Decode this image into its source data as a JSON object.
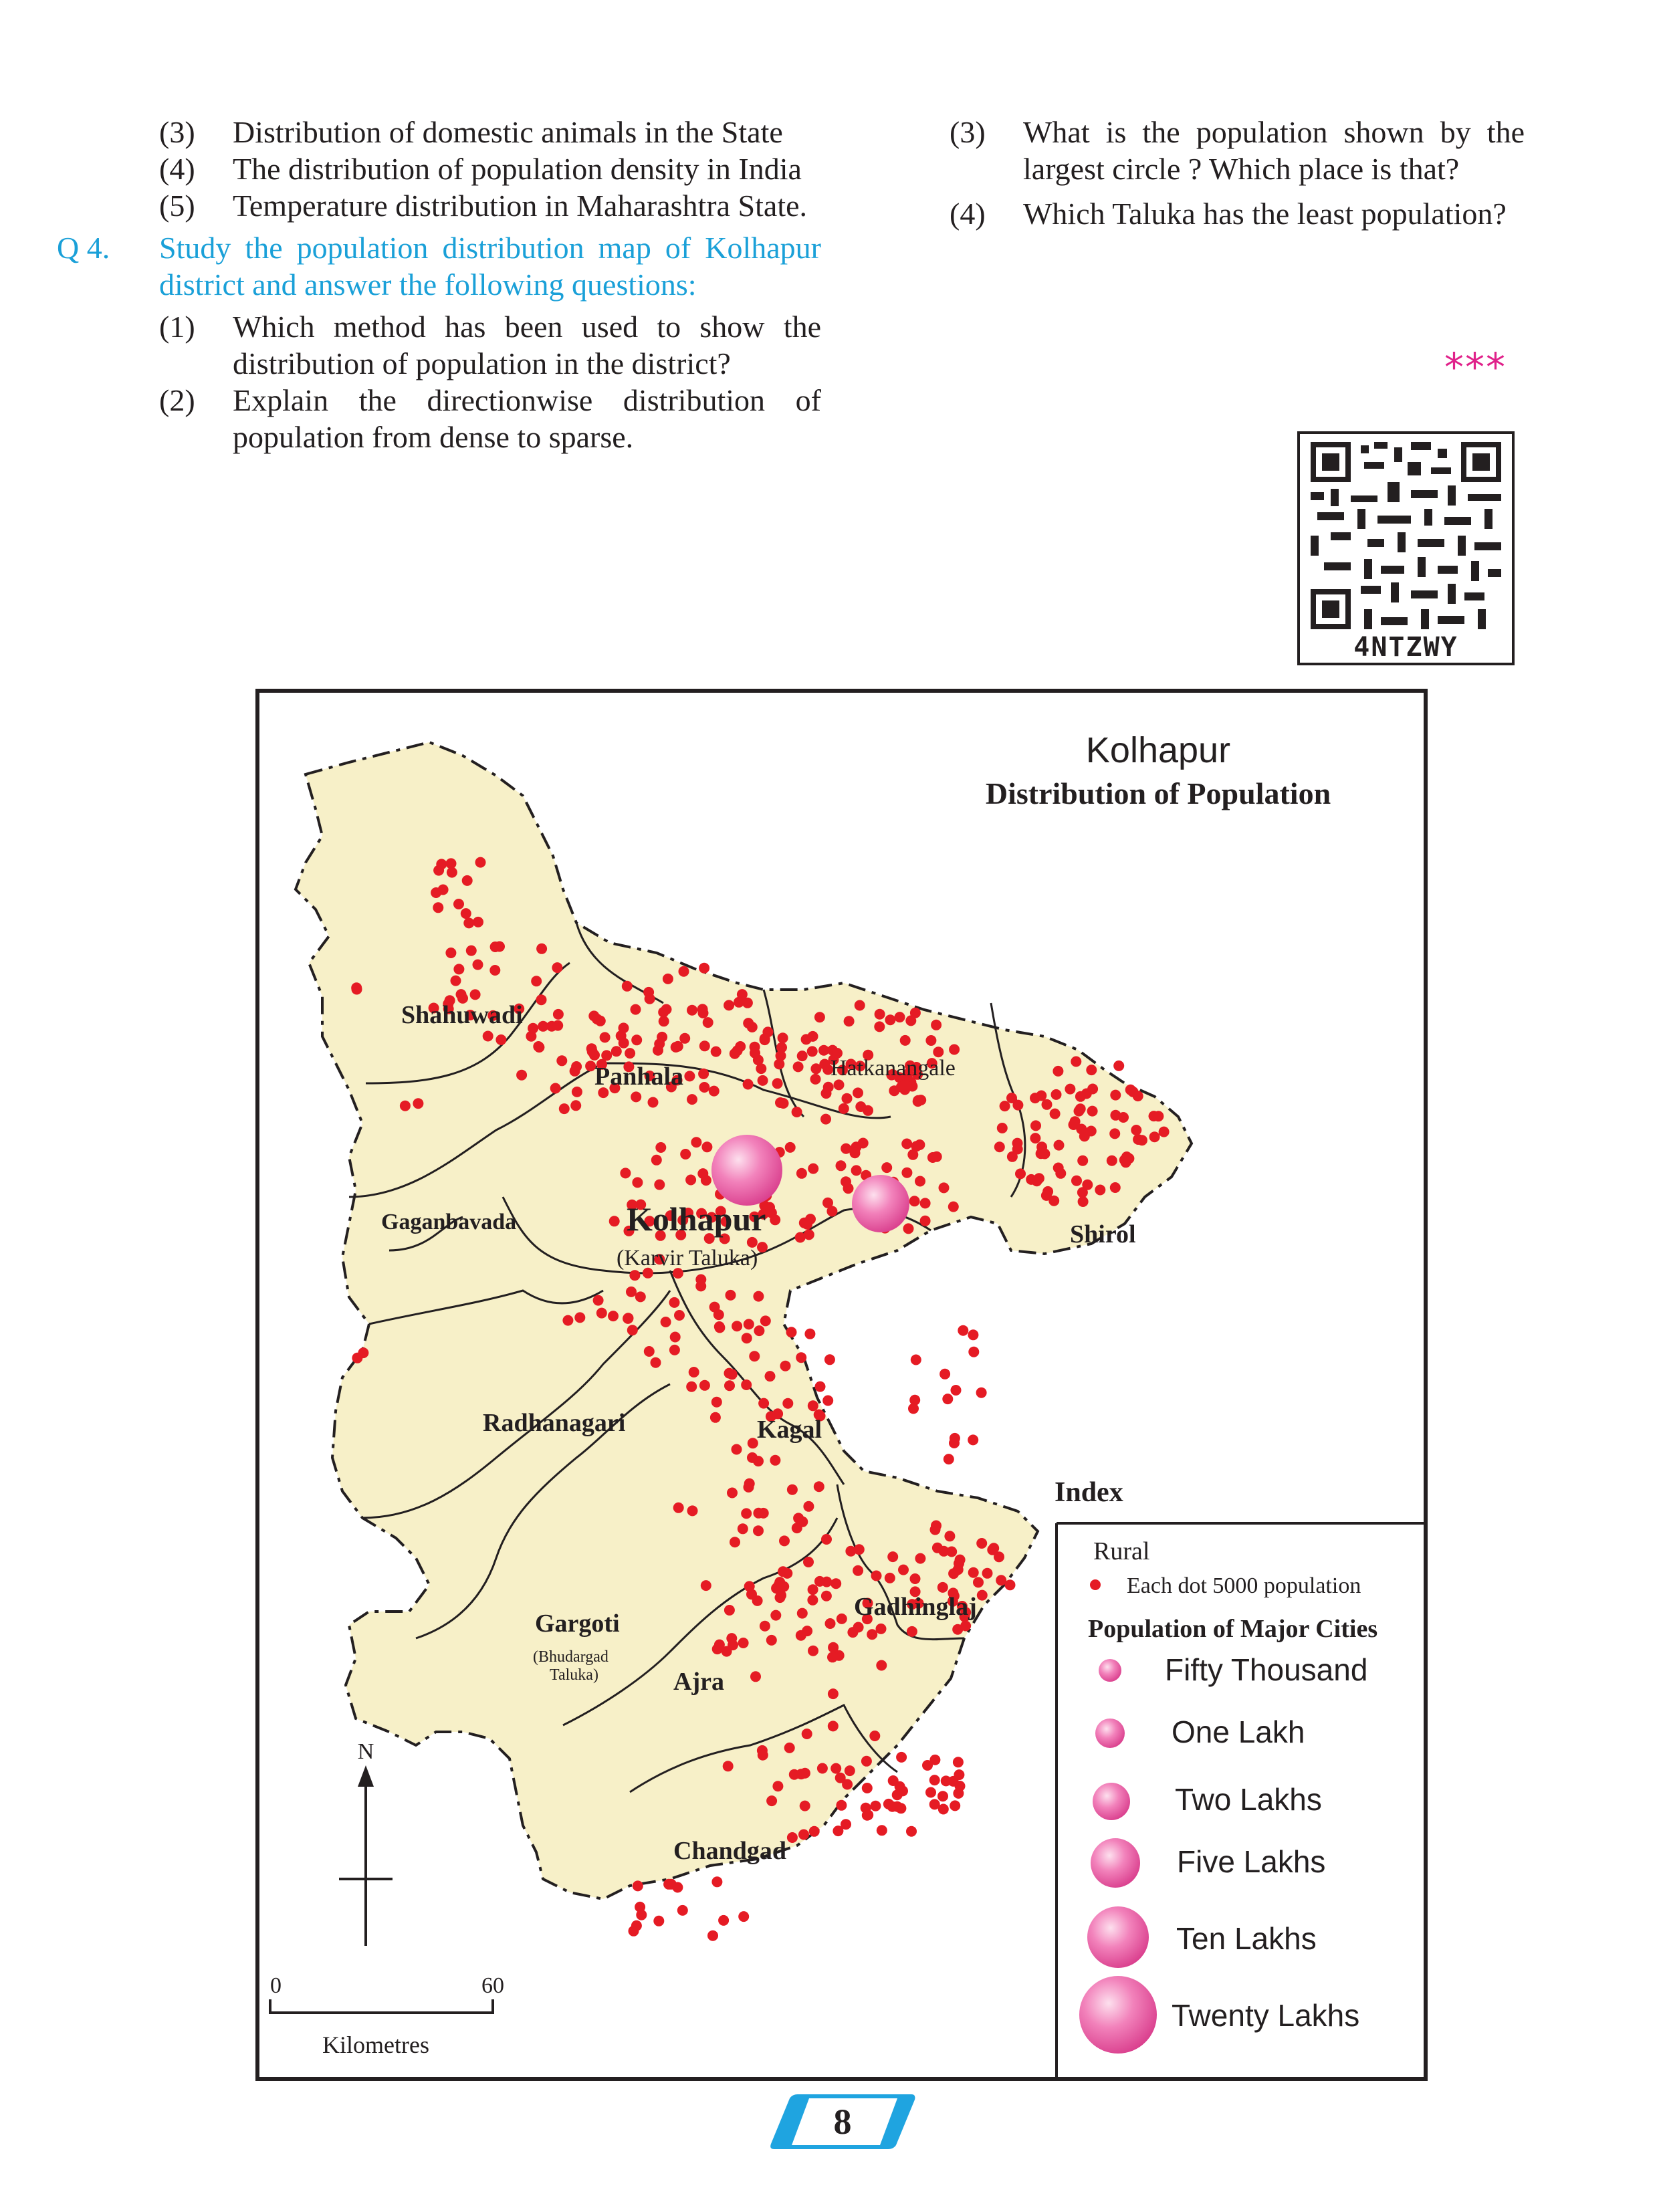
{
  "left_column": {
    "items_top": [
      {
        "num": "(3)",
        "text": "Distribution of domestic animals in the State"
      },
      {
        "num": "(4)",
        "text": "The distribution of population density in India"
      },
      {
        "num": "(5)",
        "text": "Temperature distribution in Maharashtra State."
      }
    ],
    "question": {
      "num": "Q 4.",
      "text": "Study the population distribution map of Kolhapur district and answer the following questions:"
    },
    "sub_items": [
      {
        "num": "(1)",
        "text": "Which method has been used to show the distribution of population in the district?"
      },
      {
        "num": "(2)",
        "text": "Explain the directionwise distribution of population from dense to sparse."
      }
    ]
  },
  "right_column": {
    "items": [
      {
        "num": "(3)",
        "text": "What is the population shown by the largest circle ? Which place is that?"
      },
      {
        "num": "(4)",
        "text": "Which Taluka has the least population?"
      }
    ],
    "stars": "***"
  },
  "qr": {
    "label": "4NTZWY"
  },
  "map": {
    "title": "Kolhapur",
    "subtitle": "Distribution of Population",
    "talukas": [
      {
        "name": "Shahuwadi"
      },
      {
        "name": "Panhala"
      },
      {
        "name": "Hatkanangale"
      },
      {
        "name": "Gaganbavada"
      },
      {
        "name": "Kolhapur"
      },
      {
        "name": "Shirol"
      },
      {
        "name": "Radhanagari"
      },
      {
        "name": "Kagal"
      },
      {
        "name": "Gargoti"
      },
      {
        "name": "Gadhinglaj"
      },
      {
        "name": "Ajra"
      },
      {
        "name": "Chandgad"
      }
    ],
    "karvir_note": "(Karvir Taluka)",
    "gargoti_note_1": "(Bhudargad",
    "gargoti_note_2": "Taluka)",
    "north": "N",
    "scale": {
      "zero": "0",
      "max": "60",
      "unit": "Kilometres"
    },
    "index": {
      "heading": "Index",
      "rural": "Rural",
      "dot_label": "Each dot 5000 population",
      "cities_heading": "Population of Major Cities",
      "circles": [
        {
          "label": "Fifty Thousand"
        },
        {
          "label": "One Lakh"
        },
        {
          "label": "Two Lakhs"
        },
        {
          "label": "Five Lakhs"
        },
        {
          "label": "Ten Lakhs"
        },
        {
          "label": "Twenty Lakhs"
        }
      ]
    },
    "colors": {
      "land": "#f7f0c8",
      "dot": "#e51b24",
      "circle": "#ee5fa7"
    }
  },
  "page": {
    "number": "8"
  }
}
